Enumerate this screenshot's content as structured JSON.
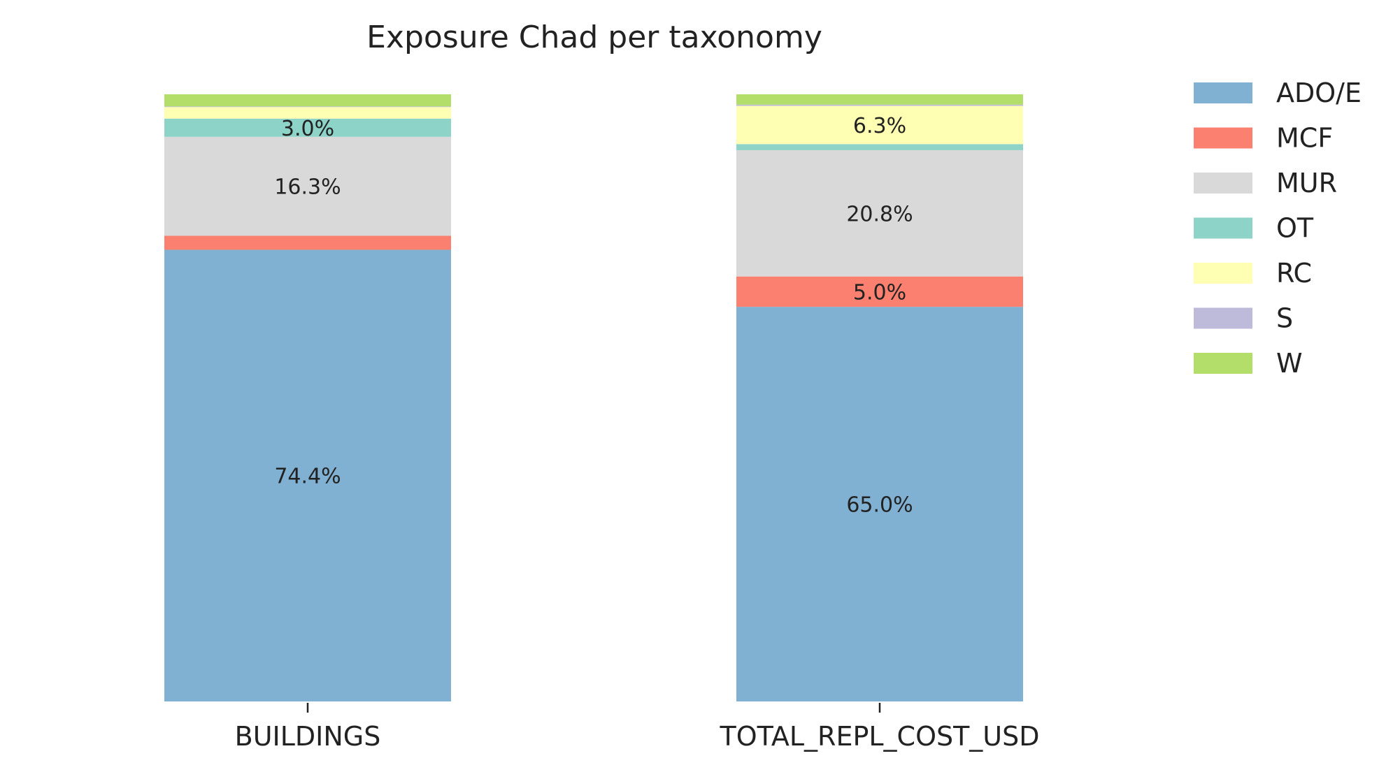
{
  "chart_data": {
    "type": "bar",
    "stacked": true,
    "normalized": true,
    "title": "Exposure Chad per taxonomy",
    "xlabel": "",
    "ylabel": "",
    "ylim": [
      0,
      100
    ],
    "grid": false,
    "legend_position": "right",
    "categories": [
      "BUILDINGS",
      "TOTAL_REPL_COST_USD"
    ],
    "series": [
      {
        "name": "ADO/E",
        "color": "#80b0d2",
        "values": [
          74.4,
          65.0
        ],
        "labels": [
          "74.4%",
          "65.0%"
        ]
      },
      {
        "name": "MCF",
        "color": "#fb8070",
        "values": [
          2.3,
          5.0
        ],
        "labels": [
          "",
          "5.0%"
        ]
      },
      {
        "name": "MUR",
        "color": "#d9d9d9",
        "values": [
          16.3,
          20.8
        ],
        "labels": [
          "16.3%",
          "20.8%"
        ]
      },
      {
        "name": "OT",
        "color": "#8dd3c7",
        "values": [
          3.0,
          1.0
        ],
        "labels": [
          "3.0%",
          ""
        ]
      },
      {
        "name": "RC",
        "color": "#ffffb3",
        "values": [
          1.9,
          6.3
        ],
        "labels": [
          "",
          "6.3%"
        ]
      },
      {
        "name": "S",
        "color": "#bebada",
        "values": [
          0.1,
          0.2
        ],
        "labels": [
          "",
          ""
        ]
      },
      {
        "name": "W",
        "color": "#b3de69",
        "values": [
          2.0,
          1.7
        ],
        "labels": [
          "",
          ""
        ]
      }
    ]
  }
}
